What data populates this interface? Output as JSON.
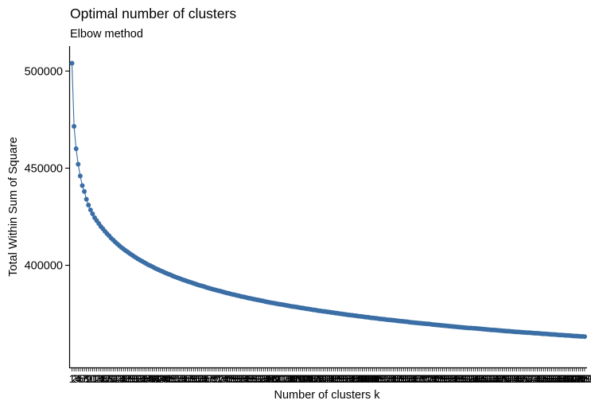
{
  "chart_data": {
    "type": "line",
    "title": "Optimal number of clusters",
    "subtitle": "Elbow method",
    "xlabel": "Number of clusters k",
    "ylabel": "Total Within Sum of Square",
    "xlim": [
      1,
      250
    ],
    "ylim": [
      347000,
      512000
    ],
    "yticks": [
      400000,
      450000,
      500000
    ],
    "grid": false,
    "legend": "none",
    "series_color": "#3a6ea5",
    "series": [
      {
        "x_start": 1,
        "x_step": 1,
        "y": [
          504000,
          471500,
          460000,
          452000,
          446000,
          441000,
          438000,
          434000,
          431000,
          428500,
          426500,
          424500,
          423000,
          421500,
          420000,
          418800,
          417500,
          416300,
          415200,
          414000,
          413000,
          412000,
          411000,
          410100,
          409200,
          408400,
          407600,
          406900,
          406100,
          405400,
          404700,
          404000,
          403300,
          402700,
          402100,
          401500,
          400900,
          400300,
          399800,
          399300,
          398700,
          398200,
          397700,
          397200,
          396800,
          396300,
          395800,
          395400,
          395000,
          394500,
          394100,
          393700,
          393300,
          392900,
          392500,
          392200,
          391800,
          391400,
          391100,
          390700,
          390400,
          390000,
          389700,
          389400,
          389100,
          388700,
          388400,
          388100,
          387800,
          387500,
          387200,
          386900,
          386700,
          386400,
          386100,
          385800,
          385600,
          385300,
          385000,
          384800,
          384500,
          384300,
          384000,
          383800,
          383600,
          383300,
          383100,
          382900,
          382600,
          382400,
          382200,
          382000,
          381800,
          381600,
          381300,
          381100,
          380900,
          380700,
          380500,
          380300,
          380100,
          379900,
          379800,
          379600,
          379400,
          379200,
          379000,
          378800,
          378700,
          378500,
          378300,
          378100,
          378000,
          377800,
          377600,
          377500,
          377300,
          377100,
          377000,
          376800,
          376600,
          376500,
          376300,
          376200,
          376000,
          375900,
          375700,
          375600,
          375400,
          375300,
          375100,
          375000,
          374800,
          374700,
          374500,
          374400,
          374300,
          374100,
          374000,
          373800,
          373700,
          373600,
          373400,
          373300,
          373200,
          373000,
          372900,
          372800,
          372700,
          372500,
          372400,
          372300,
          372200,
          372000,
          371900,
          371800,
          371700,
          371600,
          371400,
          371300,
          371200,
          371100,
          371000,
          370900,
          370700,
          370600,
          370500,
          370400,
          370300,
          370200,
          370100,
          370000,
          369900,
          369800,
          369700,
          369500,
          369400,
          369300,
          369200,
          369100,
          369000,
          368900,
          368800,
          368700,
          368600,
          368500,
          368400,
          368300,
          368200,
          368100,
          368000,
          367900,
          367800,
          367700,
          367700,
          367600,
          367500,
          367400,
          367300,
          367200,
          367100,
          367000,
          366900,
          366800,
          366700,
          366700,
          366600,
          366500,
          366400,
          366300,
          366200,
          366100,
          366100,
          366000,
          365900,
          365800,
          365700,
          365700,
          365600,
          365500,
          365400,
          365300,
          365300,
          365200,
          365100,
          365000,
          365000,
          364900,
          364800,
          364700,
          364700,
          364600,
          364500,
          364400,
          364400,
          364300,
          364200,
          364100,
          364100,
          364000,
          363900,
          363900,
          363800,
          363700,
          363600,
          363600,
          363500,
          363400,
          363400,
          363300
        ]
      }
    ]
  }
}
